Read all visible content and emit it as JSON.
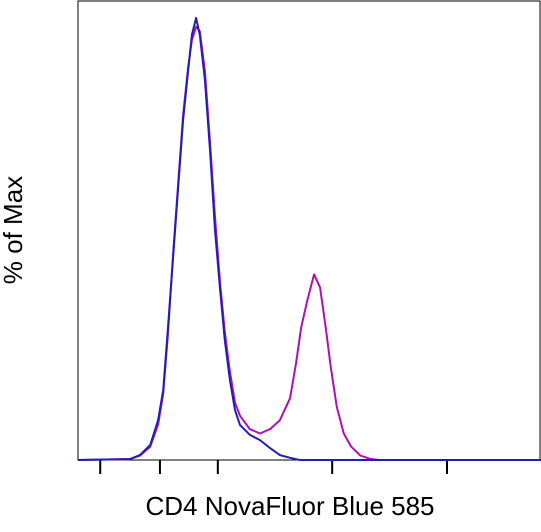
{
  "chart_data": {
    "type": "line",
    "xlabel": "CD4 NovaFluor Blue 585",
    "ylabel": "% of Max",
    "xlim": [
      0,
      100
    ],
    "ylim": [
      0,
      100
    ],
    "xticks": [
      4.8,
      17.7,
      30.2,
      54.9,
      79.7
    ],
    "series": [
      {
        "color": "#b010b0",
        "x": [
          0,
          11.2,
          13.4,
          15.6,
          17.3,
          18.4,
          19.4,
          20.5,
          21.6,
          22.7,
          23.8,
          24.6,
          25.5,
          26.3,
          27.4,
          28.5,
          29.6,
          30.7,
          31.7,
          32.8,
          33.9,
          35.0,
          37.1,
          39.3,
          41.5,
          43.6,
          45.8,
          47.1,
          48.2,
          49.5,
          51.0,
          52.3,
          53.5,
          54.6,
          55.9,
          57.4,
          59.0,
          61.0,
          63.0,
          65.0,
          100
        ],
        "values": [
          0,
          0.2,
          1,
          3,
          8,
          15,
          28,
          46,
          62,
          78,
          89,
          95,
          98,
          97,
          88,
          72,
          55,
          40,
          29,
          20,
          13,
          10,
          7,
          6,
          7,
          9,
          14,
          22,
          30,
          36,
          42,
          39,
          30,
          21,
          12,
          6,
          3,
          1,
          0.3,
          0,
          0
        ]
      },
      {
        "color": "#2020b0",
        "x": [
          0,
          11.2,
          13.4,
          15.6,
          17.3,
          18.4,
          19.4,
          20.5,
          21.6,
          22.7,
          23.8,
          24.6,
          25.5,
          26.3,
          27.4,
          28.5,
          29.6,
          30.7,
          31.7,
          32.8,
          33.9,
          35.0,
          37.1,
          39.3,
          41.5,
          43.6,
          45.8,
          47.9,
          100
        ],
        "values": [
          0,
          0.2,
          1.1,
          3.4,
          9.0,
          15.8,
          29.4,
          45.2,
          61.1,
          76.9,
          88.2,
          96.2,
          100,
          96.2,
          86.0,
          70.1,
          52.0,
          38.5,
          27.1,
          18.1,
          11.3,
          7.9,
          5.7,
          4.5,
          2.7,
          1.1,
          0.5,
          0,
          0
        ]
      }
    ]
  }
}
